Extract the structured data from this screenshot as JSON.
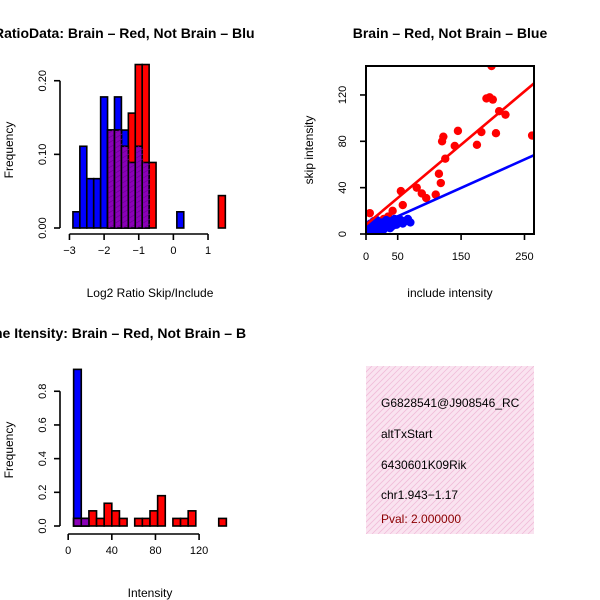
{
  "colors": {
    "red": "#ff0000",
    "blue": "#0000ff",
    "purple": "#8b00b8",
    "info_bg": "#fae3f0",
    "info_hatch": "#f0bcd9",
    "pval": "#8b0000"
  },
  "chart_data": [
    {
      "type": "bar",
      "subtype": "overlaid-histogram",
      "title": "RatioData: Brain – Red, Not Brain – Blu",
      "xlabel": "Log2 Ratio Skip/Include",
      "ylabel": "Frequency",
      "xlim": [
        -3.1,
        1.75
      ],
      "ylim": [
        0,
        0.22
      ],
      "xticks": [
        -3,
        -2,
        -1,
        0,
        1
      ],
      "xtick_labels": [
        "−3",
        "−2",
        "−1",
        "0",
        "1"
      ],
      "yticks": [
        0,
        0.1,
        0.2
      ],
      "ytick_labels": [
        "0.00",
        "0.10",
        "0.20"
      ],
      "series": [
        {
          "name": "Not Brain",
          "color": "blue",
          "bins": [
            {
              "x0": -2.9,
              "x1": -2.7,
              "value": 0.022
            },
            {
              "x0": -2.7,
              "x1": -2.5,
              "value": 0.111
            },
            {
              "x0": -2.5,
              "x1": -2.3,
              "value": 0.067
            },
            {
              "x0": -2.3,
              "x1": -2.1,
              "value": 0.067
            },
            {
              "x0": -2.1,
              "x1": -1.9,
              "value": 0.178
            },
            {
              "x0": -1.9,
              "x1": -1.7,
              "value": 0.133
            },
            {
              "x0": -1.7,
              "x1": -1.5,
              "value": 0.178
            },
            {
              "x0": -1.5,
              "x1": -1.3,
              "value": 0.133
            },
            {
              "x0": -1.3,
              "x1": -1.1,
              "value": 0.089
            },
            {
              "x0": -1.1,
              "x1": -0.9,
              "value": 0.111
            },
            {
              "x0": -0.9,
              "x1": -0.7,
              "value": 0.089
            },
            {
              "x0": 0.1,
              "x1": 0.3,
              "value": 0.022
            }
          ]
        },
        {
          "name": "Brain",
          "color": "red",
          "bins": [
            {
              "x0": -1.9,
              "x1": -1.7,
              "value": 0.133
            },
            {
              "x0": -1.7,
              "x1": -1.5,
              "value": 0.133
            },
            {
              "x0": -1.5,
              "x1": -1.3,
              "value": 0.111
            },
            {
              "x0": -1.3,
              "x1": -1.1,
              "value": 0.156
            },
            {
              "x0": -1.1,
              "x1": -0.9,
              "value": 0.222
            },
            {
              "x0": -0.9,
              "x1": -0.7,
              "value": 0.222
            },
            {
              "x0": -0.7,
              "x1": -0.5,
              "value": 0.089
            },
            {
              "x0": 1.3,
              "x1": 1.5,
              "value": 0.044
            }
          ]
        }
      ]
    },
    {
      "type": "scatter",
      "title": "Brain – Red, Not Brain – Blue",
      "xlabel": "include intensity",
      "ylabel": "skip intensity",
      "xlim": [
        0,
        265
      ],
      "ylim": [
        0,
        145
      ],
      "xticks": [
        0,
        50,
        150,
        250
      ],
      "yticks": [
        0,
        40,
        80,
        120
      ],
      "series": [
        {
          "name": "Brain",
          "color": "red",
          "fit_line": [
            [
              0,
              8
            ],
            [
              265,
              130
            ]
          ],
          "points": [
            [
              6,
              18
            ],
            [
              9,
              4
            ],
            [
              12,
              8
            ],
            [
              16,
              12
            ],
            [
              22,
              9
            ],
            [
              28,
              13
            ],
            [
              35,
              15
            ],
            [
              42,
              20
            ],
            [
              55,
              37
            ],
            [
              58,
              25
            ],
            [
              80,
              40
            ],
            [
              88,
              35
            ],
            [
              95,
              31
            ],
            [
              110,
              34
            ],
            [
              115,
              52
            ],
            [
              118,
              44
            ],
            [
              120,
              80
            ],
            [
              122,
              84
            ],
            [
              125,
              65
            ],
            [
              140,
              76
            ],
            [
              145,
              89
            ],
            [
              175,
              77
            ],
            [
              182,
              88
            ],
            [
              190,
              117
            ],
            [
              195,
              118
            ],
            [
              198,
              145
            ],
            [
              200,
              116
            ],
            [
              205,
              87
            ],
            [
              210,
              106
            ],
            [
              220,
              103
            ],
            [
              262,
              85
            ]
          ]
        },
        {
          "name": "Not Brain",
          "color": "blue",
          "fit_line": [
            [
              0,
              3
            ],
            [
              265,
              68
            ]
          ],
          "points": [
            [
              4,
              2
            ],
            [
              6,
              5
            ],
            [
              7,
              9
            ],
            [
              9,
              3
            ],
            [
              10,
              7
            ],
            [
              12,
              11
            ],
            [
              13,
              4
            ],
            [
              15,
              8
            ],
            [
              17,
              12
            ],
            [
              18,
              5
            ],
            [
              20,
              3
            ],
            [
              22,
              9
            ],
            [
              24,
              6
            ],
            [
              26,
              10
            ],
            [
              28,
              4
            ],
            [
              30,
              8
            ],
            [
              32,
              12
            ],
            [
              33,
              6
            ],
            [
              36,
              9
            ],
            [
              38,
              5
            ],
            [
              40,
              11
            ],
            [
              42,
              7
            ],
            [
              45,
              13
            ],
            [
              48,
              8
            ],
            [
              50,
              10
            ],
            [
              55,
              12
            ],
            [
              58,
              9
            ],
            [
              62,
              11
            ],
            [
              66,
              13
            ],
            [
              70,
              10
            ]
          ]
        }
      ]
    },
    {
      "type": "bar",
      "subtype": "overlaid-histogram",
      "title": "ne Itensity: Brain – Red, Not Brain – B",
      "xlabel": "Intensity",
      "ylabel": "Frequency",
      "xlim": [
        -2,
        152
      ],
      "ylim": [
        0,
        0.95
      ],
      "xticks": [
        0,
        40,
        80,
        120
      ],
      "yticks": [
        0,
        0.2,
        0.4,
        0.6,
        0.8
      ],
      "ytick_labels": [
        "0.0",
        "0.2",
        "0.4",
        "0.6",
        "0.8"
      ],
      "series": [
        {
          "name": "Not Brain",
          "color": "blue",
          "bins": [
            {
              "x0": 5,
              "x1": 12,
              "value": 0.93
            },
            {
              "x0": 12,
              "x1": 19,
              "value": 0.045
            }
          ]
        },
        {
          "name": "Brain",
          "color": "red",
          "bins": [
            {
              "x0": 5,
              "x1": 12,
              "value": 0.045
            },
            {
              "x0": 12,
              "x1": 19,
              "value": 0.045
            },
            {
              "x0": 19,
              "x1": 26,
              "value": 0.09
            },
            {
              "x0": 26,
              "x1": 33,
              "value": 0.045
            },
            {
              "x0": 33,
              "x1": 40,
              "value": 0.135
            },
            {
              "x0": 40,
              "x1": 47,
              "value": 0.09
            },
            {
              "x0": 47,
              "x1": 54,
              "value": 0.045
            },
            {
              "x0": 61,
              "x1": 68,
              "value": 0.045
            },
            {
              "x0": 68,
              "x1": 75,
              "value": 0.045
            },
            {
              "x0": 75,
              "x1": 82,
              "value": 0.09
            },
            {
              "x0": 82,
              "x1": 89,
              "value": 0.18
            },
            {
              "x0": 96,
              "x1": 103,
              "value": 0.045
            },
            {
              "x0": 103,
              "x1": 110,
              "value": 0.045
            },
            {
              "x0": 110,
              "x1": 117,
              "value": 0.09
            },
            {
              "x0": 138,
              "x1": 145,
              "value": 0.045
            }
          ]
        }
      ]
    }
  ],
  "info_panel": {
    "gene_id": "G6828541@J908546_RC",
    "event_type": "altTxStart",
    "gene_name": "6430601K09Rik",
    "location": "chr1.943−1.17",
    "pval": "Pval: 2.000000"
  }
}
